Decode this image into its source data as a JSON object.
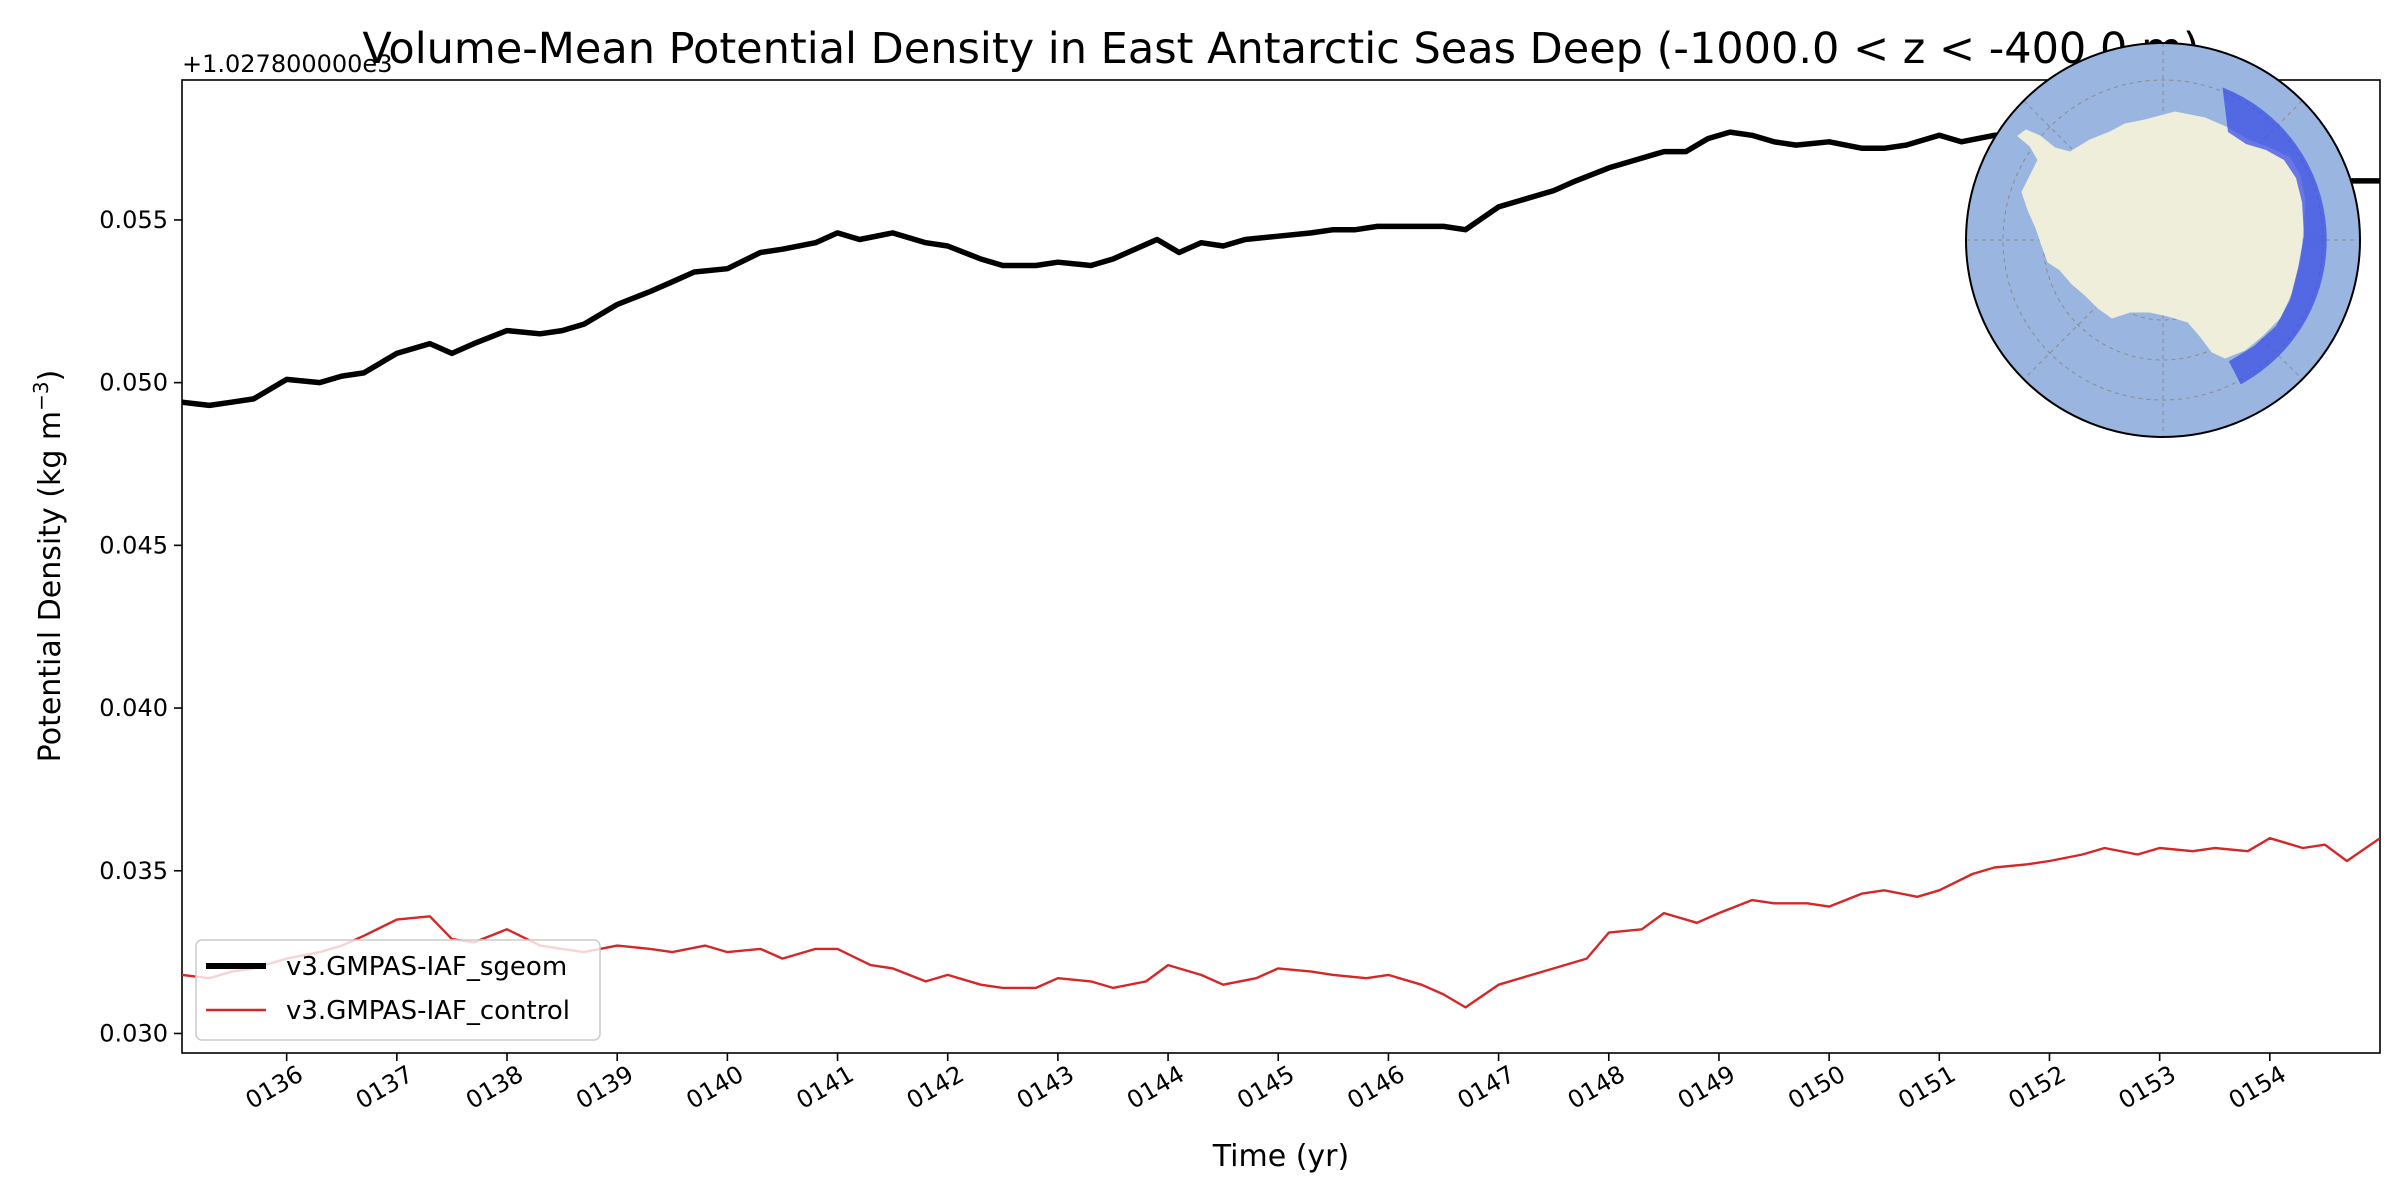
{
  "chart_data": {
    "type": "line",
    "title": "Volume-Mean Potential Density in East Antarctic Seas Deep (-1000.0 < z < -400.0 m)",
    "offset_label": "+1.027800000e3",
    "xlabel": "Time (yr)",
    "ylabel_main": "Potential Density (kg m",
    "ylabel_sup": "−3",
    "ylabel_close": ")",
    "xlim": [
      135.05,
      155.0
    ],
    "ylim": [
      0.0294,
      0.0593
    ],
    "x_ticks": [
      136,
      137,
      138,
      139,
      140,
      141,
      142,
      143,
      144,
      145,
      146,
      147,
      148,
      149,
      150,
      151,
      152,
      153,
      154
    ],
    "x_tick_labels": [
      "0136",
      "0137",
      "0138",
      "0139",
      "0140",
      "0141",
      "0142",
      "0143",
      "0144",
      "0145",
      "0146",
      "0147",
      "0148",
      "0149",
      "0150",
      "0151",
      "0152",
      "0153",
      "0154"
    ],
    "y_ticks": [
      0.03,
      0.035,
      0.04,
      0.045,
      0.05,
      0.055
    ],
    "y_tick_labels": [
      "0.030",
      "0.035",
      "0.040",
      "0.045",
      "0.050",
      "0.055"
    ],
    "grid": false,
    "legend_position": "lower-left",
    "series": [
      {
        "name": "v3.GMPAS-IAF_sgeom",
        "color": "#000000",
        "x": [
          135.05,
          135.3,
          135.5,
          135.7,
          136.0,
          136.3,
          136.5,
          136.7,
          137.0,
          137.3,
          137.5,
          137.7,
          138.0,
          138.3,
          138.5,
          138.7,
          139.0,
          139.3,
          139.5,
          139.7,
          140.0,
          140.3,
          140.5,
          140.8,
          141.0,
          141.2,
          141.5,
          141.8,
          142.0,
          142.3,
          142.5,
          142.8,
          143.0,
          143.3,
          143.5,
          143.7,
          143.9,
          144.1,
          144.3,
          144.5,
          144.7,
          145.0,
          145.3,
          145.5,
          145.7,
          145.9,
          146.2,
          146.5,
          146.7,
          147.0,
          147.2,
          147.5,
          147.7,
          148.0,
          148.2,
          148.5,
          148.7,
          148.9,
          149.1,
          149.3,
          149.5,
          149.7,
          150.0,
          150.3,
          150.5,
          150.7,
          151.0,
          151.2,
          151.5,
          151.7,
          152.0,
          152.2,
          152.4,
          152.6,
          152.8,
          153.0,
          153.2,
          153.4,
          153.6,
          153.8,
          154.0,
          154.2,
          154.4,
          154.6,
          154.8,
          155.0
        ],
        "values": [
          0.0494,
          0.0493,
          0.0494,
          0.0495,
          0.0501,
          0.05,
          0.0502,
          0.0503,
          0.0509,
          0.0512,
          0.0509,
          0.0512,
          0.0516,
          0.0515,
          0.0516,
          0.0518,
          0.0524,
          0.0528,
          0.0531,
          0.0534,
          0.0535,
          0.054,
          0.0541,
          0.0543,
          0.0546,
          0.0544,
          0.0546,
          0.0543,
          0.0542,
          0.0538,
          0.0536,
          0.0536,
          0.0537,
          0.0536,
          0.0538,
          0.0541,
          0.0544,
          0.054,
          0.0543,
          0.0542,
          0.0544,
          0.0545,
          0.0546,
          0.0547,
          0.0547,
          0.0548,
          0.0548,
          0.0548,
          0.0547,
          0.0554,
          0.0556,
          0.0559,
          0.0562,
          0.0566,
          0.0568,
          0.0571,
          0.0571,
          0.0575,
          0.0577,
          0.0576,
          0.0574,
          0.0573,
          0.0574,
          0.0572,
          0.0572,
          0.0573,
          0.0576,
          0.0574,
          0.0576,
          0.0576,
          0.0576,
          0.0575,
          0.057,
          0.0566,
          0.0563,
          0.0562,
          0.056,
          0.0559,
          0.056,
          0.0561,
          0.0562,
          0.0561,
          0.0562,
          0.0562,
          0.0562,
          0.0562
        ]
      },
      {
        "name": "v3.GMPAS-IAF_control",
        "color": "#d62728",
        "x": [
          135.05,
          135.3,
          135.5,
          135.7,
          136.0,
          136.3,
          136.5,
          136.7,
          137.0,
          137.3,
          137.5,
          137.7,
          138.0,
          138.3,
          138.5,
          138.7,
          139.0,
          139.3,
          139.5,
          139.8,
          140.0,
          140.3,
          140.5,
          140.8,
          141.0,
          141.3,
          141.5,
          141.8,
          142.0,
          142.3,
          142.5,
          142.8,
          143.0,
          143.3,
          143.5,
          143.8,
          144.0,
          144.3,
          144.5,
          144.8,
          145.0,
          145.3,
          145.5,
          145.8,
          146.0,
          146.3,
          146.5,
          146.7,
          147.0,
          147.3,
          147.5,
          147.8,
          148.0,
          148.3,
          148.5,
          148.8,
          149.0,
          149.3,
          149.5,
          149.8,
          150.0,
          150.3,
          150.5,
          150.8,
          151.0,
          151.3,
          151.5,
          151.8,
          152.0,
          152.3,
          152.5,
          152.8,
          153.0,
          153.3,
          153.5,
          153.8,
          154.0,
          154.3,
          154.5,
          154.7,
          155.0
        ],
        "values": [
          0.0318,
          0.0317,
          0.0319,
          0.032,
          0.0323,
          0.0325,
          0.0327,
          0.033,
          0.0335,
          0.0336,
          0.0329,
          0.0328,
          0.0332,
          0.0327,
          0.0326,
          0.0325,
          0.0327,
          0.0326,
          0.0325,
          0.0327,
          0.0325,
          0.0326,
          0.0323,
          0.0326,
          0.0326,
          0.0321,
          0.032,
          0.0316,
          0.0318,
          0.0315,
          0.0314,
          0.0314,
          0.0317,
          0.0316,
          0.0314,
          0.0316,
          0.0321,
          0.0318,
          0.0315,
          0.0317,
          0.032,
          0.0319,
          0.0318,
          0.0317,
          0.0318,
          0.0315,
          0.0312,
          0.0308,
          0.0315,
          0.0318,
          0.032,
          0.0323,
          0.0331,
          0.0332,
          0.0337,
          0.0334,
          0.0337,
          0.0341,
          0.034,
          0.034,
          0.0339,
          0.0343,
          0.0344,
          0.0342,
          0.0344,
          0.0349,
          0.0351,
          0.0352,
          0.0353,
          0.0355,
          0.0357,
          0.0355,
          0.0357,
          0.0356,
          0.0357,
          0.0356,
          0.036,
          0.0357,
          0.0358,
          0.0353,
          0.036
        ]
      }
    ]
  },
  "inset_map": {
    "ocean_color": "#9ab6e0",
    "land_color": "#efeedb",
    "region_color": "#3b4fe6"
  }
}
